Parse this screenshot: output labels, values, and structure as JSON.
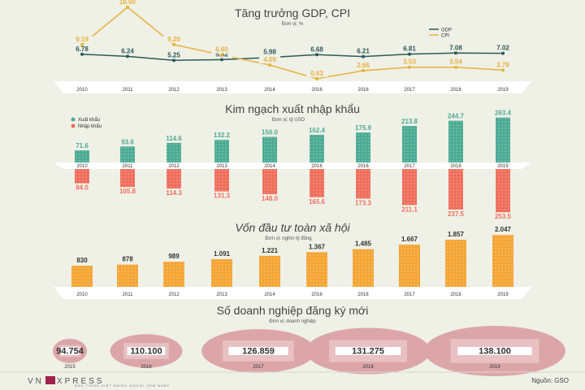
{
  "colors": {
    "background": "#eff0e6",
    "gdp": "#2b5a57",
    "cpi": "#e8b23d",
    "export": "#4daa93",
    "import": "#ef6e5c",
    "investment": "#f4a535",
    "enterprise_circle": "#dca6a9"
  },
  "sections": {
    "gdp_title": "Tăng trưởng GDP, CPI",
    "gdp_unit": "Đơn vị: %",
    "trade_title": "Kim ngạch xuất nhập khẩu",
    "trade_unit": "Đơn vị: tỷ USD",
    "invest_title": "Vốn đầu tư toàn xã hội",
    "invest_unit": "Đơn vị: nghìn tỷ đồng",
    "enterprise_title": "Số doanh nghiệp đăng ký mới",
    "enterprise_unit": "Đơn vị: doanh nghiệp"
  },
  "footer": {
    "brand_left": "VN",
    "brand_right": "XPRESS",
    "brand_sub": "BÁO TIẾNG VIỆT NHIỀU NGƯỜI XEM NHẤT",
    "source": "Nguồn: GSO"
  },
  "chart_data": [
    {
      "type": "line",
      "title": "Tăng trưởng GDP, CPI",
      "subtitle": "Đơn vị: %",
      "x": [
        "2010",
        "2011",
        "2012",
        "2013",
        "2014",
        "2016",
        "2016",
        "2017",
        "2018",
        "2019"
      ],
      "series": [
        {
          "name": "GDP",
          "values": [
            6.78,
            6.24,
            5.25,
            5.42,
            5.98,
            6.68,
            6.21,
            6.81,
            7.08,
            7.02
          ]
        },
        {
          "name": "CPI",
          "values": [
            9.19,
            18.6,
            9.2,
            6.6,
            4.09,
            0.63,
            2.66,
            3.53,
            3.54,
            2.79
          ]
        }
      ],
      "labels": {
        "GDP": [
          "6.78",
          "6.24",
          "5.25",
          "5.42",
          "5.98",
          "6.68",
          "6.21",
          "6.81",
          "7.08",
          "7.02"
        ],
        "CPI": [
          "9.19",
          "18.60",
          "9.20",
          "6.60",
          "4.09",
          "0.63",
          "2.66",
          "3.53",
          "3.54",
          "2.79"
        ]
      },
      "legend": "top-right"
    },
    {
      "type": "bar",
      "title": "Kim ngạch xuất nhập khẩu",
      "subtitle": "Đơn vị: tỷ USD",
      "categories": [
        "2010",
        "2011",
        "2012",
        "2013",
        "2014",
        "2016",
        "2016",
        "2017",
        "2018",
        "2019"
      ],
      "series": [
        {
          "name": "Xuất khẩu",
          "values": [
            71.6,
            93.6,
            114.6,
            132.2,
            150.0,
            162.4,
            175.9,
            213.8,
            244.7,
            263.4
          ]
        },
        {
          "name": "Nhập khẩu",
          "values": [
            84.0,
            105.8,
            114.3,
            131.3,
            148.0,
            165.6,
            173.3,
            211.1,
            237.5,
            253.5
          ]
        }
      ],
      "legend": "top-left"
    },
    {
      "type": "bar",
      "title": "Vốn đầu tư toàn xã hội",
      "subtitle": "Đơn vị: nghìn tỷ đồng",
      "categories": [
        "2010",
        "2011",
        "2012",
        "2013",
        "2014",
        "2016",
        "2016",
        "2017",
        "2018",
        "2019"
      ],
      "values": [
        830,
        878,
        989,
        1091,
        1221,
        1367,
        1485,
        1667,
        1857,
        2047
      ],
      "labels": [
        "830",
        "878",
        "989",
        "1.091",
        "1.221",
        "1.367",
        "1.485",
        "1.667",
        "1.857",
        "2.047"
      ]
    },
    {
      "type": "bar",
      "title": "Số doanh nghiệp đăng ký mới",
      "subtitle": "Đơn vị: doanh nghiệp",
      "categories": [
        "2015",
        "2016",
        "2017",
        "2018",
        "2019"
      ],
      "values": [
        94754,
        110100,
        126859,
        131275,
        138100
      ],
      "labels": [
        "94.754",
        "110.100",
        "126.859",
        "131.275",
        "138.100"
      ]
    }
  ]
}
